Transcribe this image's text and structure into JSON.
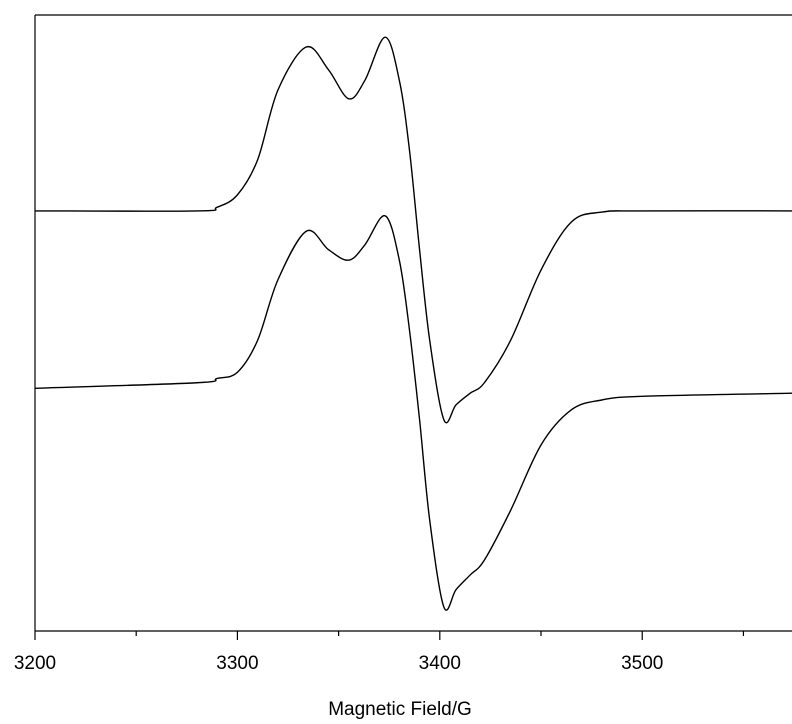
{
  "chart_data": {
    "type": "line",
    "xlabel": "Magnetic Field/G",
    "xlim": [
      3200,
      3574
    ],
    "xticks": [
      3200,
      3300,
      3400,
      3500
    ],
    "xminorticks": [
      3250,
      3350,
      3450,
      3550
    ],
    "ylim": [
      0,
      100
    ],
    "x": [
      3200,
      3280,
      3290,
      3300,
      3310,
      3320,
      3334,
      3345,
      3355,
      3363,
      3373,
      3380,
      3385,
      3390,
      3395,
      3402,
      3408,
      3415,
      3422,
      3435,
      3450,
      3465,
      3480,
      3500,
      3574
    ],
    "series": [
      {
        "color": "#000000",
        "values": [
          68.2,
          68.2,
          68.8,
          70.8,
          76.5,
          87.8,
          94.8,
          91.1,
          86.4,
          89.4,
          96.4,
          89.4,
          78.1,
          61.9,
          47.2,
          34.3,
          36.7,
          38.6,
          40.3,
          47.2,
          58.6,
          66.4,
          68.0,
          68.2,
          68.2
        ]
      },
      {
        "color": "#000000",
        "values": [
          39.4,
          40.3,
          41.0,
          42.0,
          47.2,
          57.0,
          64.9,
          61.9,
          60.2,
          62.7,
          67.4,
          60.2,
          48.9,
          34.3,
          18.0,
          3.9,
          6.7,
          9.1,
          11.5,
          19.6,
          30.2,
          35.9,
          37.5,
          38.1,
          38.6
        ]
      }
    ]
  }
}
